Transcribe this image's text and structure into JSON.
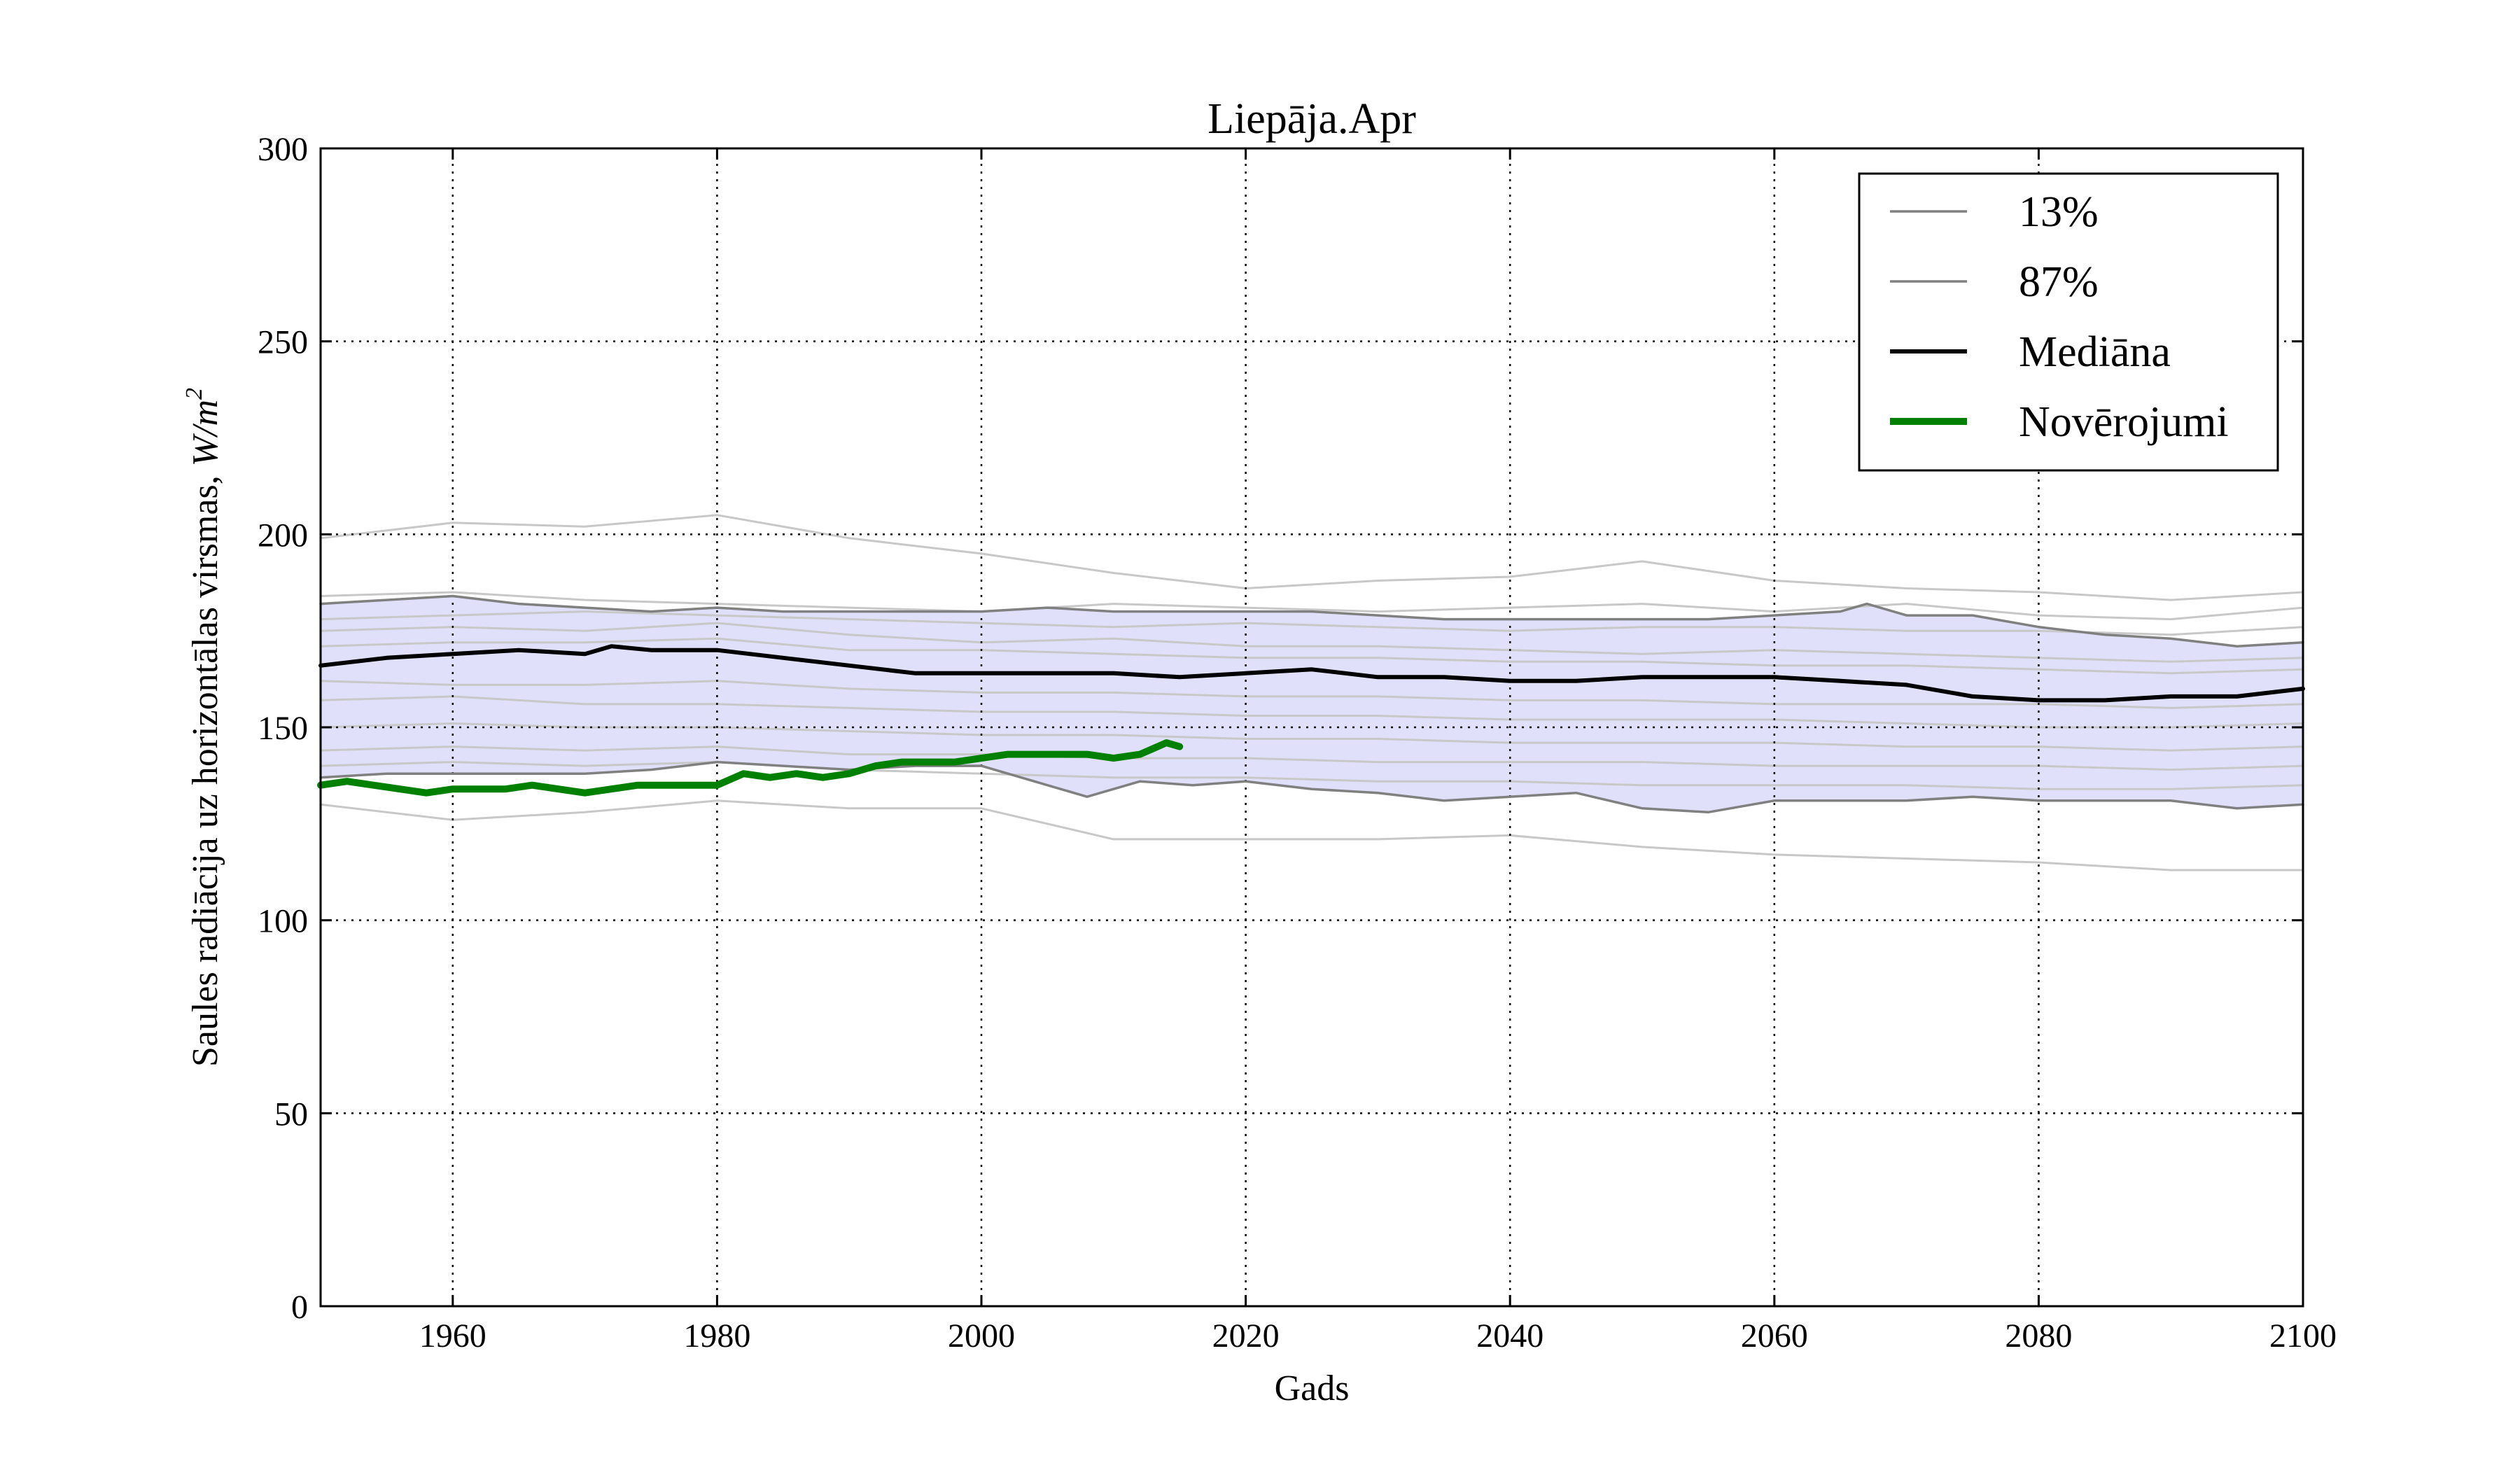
{
  "chart_data": {
    "type": "line",
    "title": "Liepāja.Apr",
    "xlabel": "Gads",
    "ylabel_text": "Saules radiācija uz horizontālas virsmas, ",
    "ylabel_unit_main": "W/m",
    "ylabel_unit_sup": "2",
    "xlim": [
      1950,
      2100
    ],
    "ylim": [
      0,
      300
    ],
    "x_ticks": [
      "1960",
      "1980",
      "2000",
      "2020",
      "2040",
      "2060",
      "2080",
      "2100"
    ],
    "y_ticks": [
      "0",
      "50",
      "100",
      "150",
      "200",
      "250",
      "300"
    ],
    "grid": true,
    "legend_position": "top-right",
    "band_color": "#e0e0fb",
    "series": [
      {
        "name": "13%",
        "color": "#808080",
        "x": [
          1950,
          1955,
          1960,
          1965,
          1970,
          1975,
          1980,
          1985,
          1990,
          1995,
          2000,
          2004,
          2008,
          2012,
          2016,
          2020,
          2025,
          2030,
          2035,
          2040,
          2045,
          2050,
          2055,
          2060,
          2065,
          2070,
          2075,
          2080,
          2085,
          2090,
          2095,
          2100
        ],
        "y": [
          137,
          138,
          138,
          138,
          138,
          139,
          141,
          140,
          139,
          140,
          140,
          136,
          132,
          136,
          135,
          136,
          134,
          133,
          131,
          132,
          133,
          129,
          128,
          131,
          131,
          131,
          132,
          131,
          131,
          131,
          129,
          130
        ]
      },
      {
        "name": "87%",
        "color": "#808080",
        "x": [
          1950,
          1955,
          1960,
          1965,
          1970,
          1975,
          1980,
          1985,
          1990,
          1995,
          2000,
          2005,
          2010,
          2015,
          2020,
          2025,
          2030,
          2035,
          2040,
          2045,
          2050,
          2055,
          2060,
          2065,
          2067,
          2070,
          2075,
          2080,
          2085,
          2090,
          2095,
          2100
        ],
        "y": [
          182,
          183,
          184,
          182,
          181,
          180,
          181,
          180,
          180,
          180,
          180,
          181,
          180,
          180,
          180,
          180,
          179,
          178,
          178,
          178,
          178,
          178,
          179,
          180,
          182,
          179,
          179,
          176,
          174,
          173,
          171,
          172
        ]
      },
      {
        "name": "Mediāna",
        "color": "#000000",
        "x": [
          1950,
          1955,
          1960,
          1965,
          1970,
          1972,
          1975,
          1980,
          1985,
          1990,
          1995,
          2000,
          2005,
          2010,
          2015,
          2020,
          2025,
          2030,
          2035,
          2040,
          2045,
          2050,
          2055,
          2060,
          2065,
          2070,
          2075,
          2080,
          2085,
          2090,
          2095,
          2100
        ],
        "y": [
          166,
          168,
          169,
          170,
          169,
          171,
          170,
          170,
          168,
          166,
          164,
          164,
          164,
          164,
          163,
          164,
          165,
          163,
          163,
          162,
          162,
          163,
          163,
          163,
          162,
          161,
          158,
          157,
          157,
          158,
          158,
          160
        ]
      },
      {
        "name": "Novērojumi",
        "color": "#008000",
        "x": [
          1950,
          1952,
          1954,
          1956,
          1958,
          1960,
          1962,
          1964,
          1966,
          1968,
          1970,
          1972,
          1974,
          1976,
          1978,
          1980,
          1982,
          1984,
          1986,
          1988,
          1990,
          1992,
          1994,
          1996,
          1998,
          2000,
          2002,
          2004,
          2006,
          2008,
          2010,
          2012,
          2014,
          2015
        ],
        "y": [
          135,
          136,
          135,
          134,
          133,
          134,
          134,
          134,
          135,
          134,
          133,
          134,
          135,
          135,
          135,
          135,
          138,
          137,
          138,
          137,
          138,
          140,
          141,
          141,
          141,
          142,
          143,
          143,
          143,
          143,
          142,
          143,
          146,
          145
        ]
      }
    ],
    "ensemble_members": [
      {
        "x": [
          1950,
          1960,
          1970,
          1980,
          1990,
          2000,
          2010,
          2020,
          2030,
          2040,
          2050,
          2060,
          2070,
          2080,
          2090,
          2100
        ],
        "y": [
          199,
          203,
          202,
          205,
          199,
          195,
          190,
          186,
          188,
          189,
          193,
          188,
          186,
          185,
          183,
          185
        ]
      },
      {
        "x": [
          1950,
          1960,
          1970,
          1980,
          1990,
          2000,
          2010,
          2020,
          2030,
          2040,
          2050,
          2060,
          2070,
          2080,
          2090,
          2100
        ],
        "y": [
          184,
          185,
          183,
          182,
          181,
          180,
          182,
          181,
          180,
          181,
          182,
          180,
          182,
          179,
          178,
          181
        ]
      },
      {
        "x": [
          1950,
          1960,
          1970,
          1980,
          1990,
          2000,
          2010,
          2020,
          2030,
          2040,
          2050,
          2060,
          2070,
          2080,
          2090,
          2100
        ],
        "y": [
          178,
          179,
          180,
          179,
          178,
          177,
          176,
          177,
          176,
          175,
          176,
          176,
          175,
          175,
          174,
          176
        ]
      },
      {
        "x": [
          1950,
          1960,
          1970,
          1980,
          1990,
          2000,
          2010,
          2020,
          2030,
          2040,
          2050,
          2060,
          2070,
          2080,
          2090,
          2100
        ],
        "y": [
          175,
          176,
          175,
          177,
          174,
          172,
          173,
          171,
          171,
          170,
          169,
          170,
          169,
          168,
          167,
          168
        ]
      },
      {
        "x": [
          1950,
          1960,
          1970,
          1980,
          1990,
          2000,
          2010,
          2020,
          2030,
          2040,
          2050,
          2060,
          2070,
          2080,
          2090,
          2100
        ],
        "y": [
          171,
          172,
          172,
          173,
          170,
          170,
          169,
          168,
          168,
          167,
          167,
          166,
          166,
          165,
          164,
          165
        ]
      },
      {
        "x": [
          1950,
          1960,
          1970,
          1980,
          1990,
          2000,
          2010,
          2020,
          2030,
          2040,
          2050,
          2060,
          2070,
          2080,
          2090,
          2100
        ],
        "y": [
          162,
          161,
          161,
          162,
          160,
          159,
          159,
          158,
          158,
          157,
          157,
          156,
          156,
          156,
          155,
          156
        ]
      },
      {
        "x": [
          1950,
          1960,
          1970,
          1980,
          1990,
          2000,
          2010,
          2020,
          2030,
          2040,
          2050,
          2060,
          2070,
          2080,
          2090,
          2100
        ],
        "y": [
          157,
          158,
          156,
          156,
          155,
          154,
          154,
          153,
          153,
          152,
          152,
          152,
          151,
          150,
          150,
          151
        ]
      },
      {
        "x": [
          1950,
          1960,
          1970,
          1980,
          1990,
          2000,
          2010,
          2020,
          2030,
          2040,
          2050,
          2060,
          2070,
          2080,
          2090,
          2100
        ],
        "y": [
          150,
          151,
          150,
          150,
          149,
          148,
          148,
          147,
          147,
          146,
          146,
          146,
          145,
          145,
          144,
          145
        ]
      },
      {
        "x": [
          1950,
          1960,
          1970,
          1980,
          1990,
          2000,
          2010,
          2020,
          2030,
          2040,
          2050,
          2060,
          2070,
          2080,
          2090,
          2100
        ],
        "y": [
          144,
          145,
          144,
          145,
          143,
          143,
          142,
          142,
          141,
          141,
          141,
          140,
          140,
          140,
          139,
          140
        ]
      },
      {
        "x": [
          1950,
          1960,
          1970,
          1980,
          1990,
          2000,
          2010,
          2020,
          2030,
          2040,
          2050,
          2060,
          2070,
          2080,
          2090,
          2100
        ],
        "y": [
          140,
          141,
          140,
          141,
          139,
          138,
          137,
          137,
          136,
          136,
          135,
          135,
          135,
          134,
          134,
          135
        ]
      },
      {
        "x": [
          1950,
          1960,
          1970,
          1980,
          1990,
          2000,
          2010,
          2020,
          2030,
          2040,
          2050,
          2060,
          2070,
          2080,
          2090,
          2100
        ],
        "y": [
          130,
          126,
          128,
          131,
          129,
          129,
          121,
          121,
          121,
          122,
          119,
          117,
          116,
          115,
          113,
          113
        ]
      }
    ]
  }
}
